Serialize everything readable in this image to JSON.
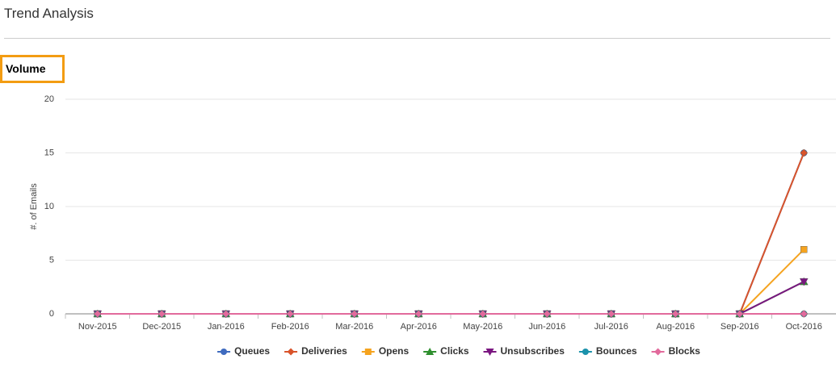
{
  "header": {
    "title": "Trend Analysis"
  },
  "section": {
    "title": "Volume"
  },
  "chart_data": {
    "type": "line",
    "y_label": "#. of Emails",
    "categories": [
      "Nov-2015",
      "Dec-2015",
      "Jan-2016",
      "Feb-2016",
      "Mar-2016",
      "Apr-2016",
      "May-2016",
      "Jun-2016",
      "Jul-2016",
      "Aug-2016",
      "Sep-2016",
      "Oct-2016"
    ],
    "series": [
      {
        "name": "Queues",
        "color": "#3f6bbf",
        "marker": "circle",
        "values": [
          0,
          0,
          0,
          0,
          0,
          0,
          0,
          0,
          0,
          0,
          0,
          15
        ]
      },
      {
        "name": "Deliveries",
        "color": "#d9542b",
        "marker": "diamond",
        "values": [
          0,
          0,
          0,
          0,
          0,
          0,
          0,
          0,
          0,
          0,
          0,
          15
        ]
      },
      {
        "name": "Opens",
        "color": "#f5a31f",
        "marker": "square",
        "values": [
          0,
          0,
          0,
          0,
          0,
          0,
          0,
          0,
          0,
          0,
          0,
          6
        ]
      },
      {
        "name": "Clicks",
        "color": "#2f8f2f",
        "marker": "triangle",
        "values": [
          0,
          0,
          0,
          0,
          0,
          0,
          0,
          0,
          0,
          0,
          0,
          3
        ]
      },
      {
        "name": "Unsubscribes",
        "color": "#7a1680",
        "marker": "triangle-down",
        "values": [
          0,
          0,
          0,
          0,
          0,
          0,
          0,
          0,
          0,
          0,
          0,
          3
        ]
      },
      {
        "name": "Bounces",
        "color": "#1b92ab",
        "marker": "circle",
        "values": [
          0,
          0,
          0,
          0,
          0,
          0,
          0,
          0,
          0,
          0,
          0,
          0
        ]
      },
      {
        "name": "Blocks",
        "color": "#e26a9c",
        "marker": "diamond",
        "values": [
          0,
          0,
          0,
          0,
          0,
          0,
          0,
          0,
          0,
          0,
          0,
          0
        ]
      }
    ],
    "ylim": [
      0,
      20
    ],
    "yticks": [
      0,
      5,
      10,
      15,
      20
    ],
    "grid": true,
    "legend": "bottom"
  }
}
